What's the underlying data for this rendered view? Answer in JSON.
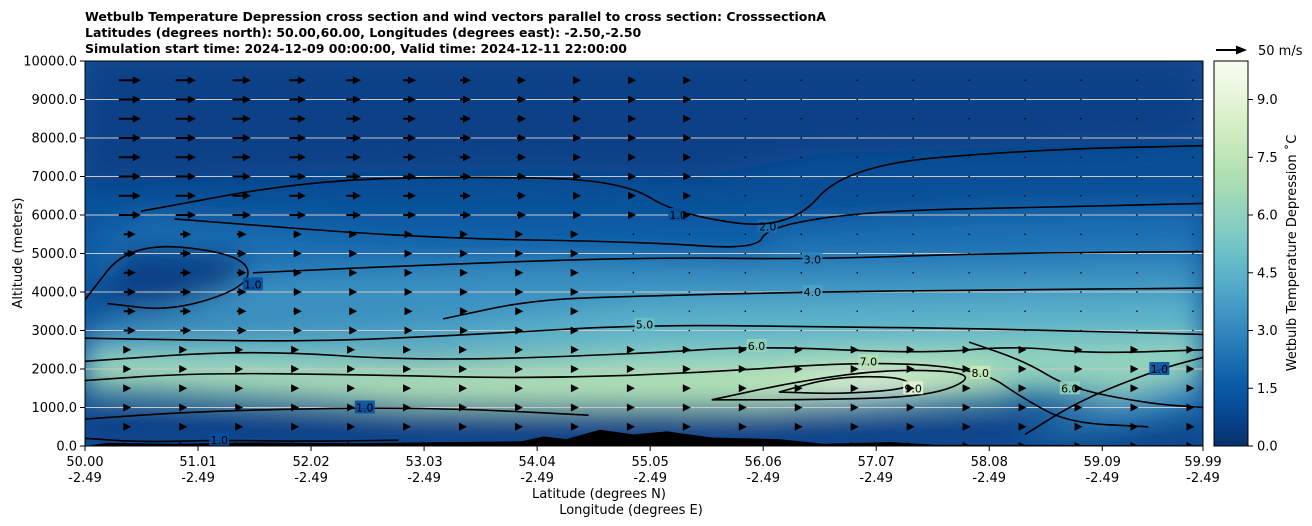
{
  "chart_data": {
    "type": "heatmap",
    "title_lines": [
      "Wetbulb Temperature Depression cross section and wind vectors parallel to cross section: CrosssectionA",
      "Latitudes (degrees north): 50.00,60.00, Longitudes (degrees east): -2.50,-2.50",
      "Simulation start time: 2024-12-09 00:00:00, Valid time: 2024-12-11 22:00:00"
    ],
    "xlabel": "Latitude (degrees N)",
    "xlabel2": "Longitude (degrees E)",
    "ylabel": "Altitude (meters)",
    "xlim": [
      50.0,
      59.99
    ],
    "ylim": [
      0,
      10000
    ],
    "x_ticks": [
      {
        "lat": "50.00",
        "lon": "-2.49",
        "v": 50.0
      },
      {
        "lat": "51.01",
        "lon": "-2.49",
        "v": 51.01
      },
      {
        "lat": "52.02",
        "lon": "-2.49",
        "v": 52.02
      },
      {
        "lat": "53.03",
        "lon": "-2.49",
        "v": 53.03
      },
      {
        "lat": "54.04",
        "lon": "-2.49",
        "v": 54.04
      },
      {
        "lat": "55.05",
        "lon": "-2.49",
        "v": 55.05
      },
      {
        "lat": "56.06",
        "lon": "-2.49",
        "v": 56.06
      },
      {
        "lat": "57.07",
        "lon": "-2.49",
        "v": 57.07
      },
      {
        "lat": "58.08",
        "lon": "-2.49",
        "v": 58.08
      },
      {
        "lat": "59.09",
        "lon": "-2.49",
        "v": 59.09
      },
      {
        "lat": "59.99",
        "lon": "-2.49",
        "v": 59.99
      }
    ],
    "y_ticks": [
      {
        "label": "0.0",
        "v": 0
      },
      {
        "label": "1000.0",
        "v": 1000
      },
      {
        "label": "2000.0",
        "v": 2000
      },
      {
        "label": "3000.0",
        "v": 3000
      },
      {
        "label": "4000.0",
        "v": 4000
      },
      {
        "label": "5000.0",
        "v": 5000
      },
      {
        "label": "6000.0",
        "v": 6000
      },
      {
        "label": "7000.0",
        "v": 7000
      },
      {
        "label": "8000.0",
        "v": 8000
      },
      {
        "label": "9000.0",
        "v": 9000
      },
      {
        "label": "10000.0",
        "v": 10000
      }
    ],
    "grid": "horizontal",
    "colorbar": {
      "label": "Wetbulb Temperature Depression ˚C",
      "range": [
        0,
        10
      ],
      "ticks": [
        {
          "label": "0.0",
          "v": 0
        },
        {
          "label": "1.5",
          "v": 1.5
        },
        {
          "label": "3.0",
          "v": 3.0
        },
        {
          "label": "4.5",
          "v": 4.5
        },
        {
          "label": "6.0",
          "v": 6.0
        },
        {
          "label": "7.5",
          "v": 7.5
        },
        {
          "label": "9.0",
          "v": 9.0
        }
      ],
      "colors": [
        "#08306b",
        "#083f86",
        "#084f9e",
        "#0b5ea8",
        "#1a6fb3",
        "#2a80ba",
        "#3b91c1",
        "#4aa3c8",
        "#5bb2c9",
        "#6cc0c7",
        "#80cbc4",
        "#93d3bd",
        "#a5dbb5",
        "#b6e2b4",
        "#c6e9bb",
        "#d5efc5",
        "#e2f4d3",
        "#eef9e4",
        "#f7fcf0"
      ]
    },
    "quiver_key": {
      "label": "50 m/s",
      "value": 50
    },
    "contours": [
      {
        "level": "1.0",
        "points": [
          [
            50.0,
            200
          ],
          [
            50.5,
            100
          ],
          [
            51.2,
            150
          ],
          [
            52.0,
            120
          ],
          [
            52.8,
            150
          ]
        ]
      },
      {
        "level": "1.0",
        "points": [
          [
            50.0,
            700
          ],
          [
            51.0,
            900
          ],
          [
            52.5,
            1000
          ],
          [
            53.5,
            950
          ],
          [
            54.5,
            800
          ]
        ]
      },
      {
        "level": "7.0",
        "points": [
          [
            50.0,
            1700
          ],
          [
            51.0,
            1900
          ],
          [
            52.5,
            1850
          ],
          [
            54.0,
            1750
          ],
          [
            55.5,
            1900
          ],
          [
            57.0,
            2200
          ],
          [
            58.0,
            2000
          ],
          [
            58.4,
            1200
          ],
          [
            58.8,
            600
          ],
          [
            59.5,
            500
          ]
        ]
      },
      {
        "level": "8.0",
        "points": [
          [
            55.6,
            1200
          ],
          [
            56.4,
            1700
          ],
          [
            57.2,
            2000
          ],
          [
            58.0,
            1900
          ],
          [
            57.6,
            1300
          ],
          [
            56.6,
            1200
          ],
          [
            55.6,
            1200
          ]
        ]
      },
      {
        "level": "9.0",
        "points": [
          [
            56.2,
            1400
          ],
          [
            56.7,
            1800
          ],
          [
            57.3,
            1800
          ],
          [
            57.4,
            1500
          ],
          [
            56.8,
            1350
          ],
          [
            56.2,
            1400
          ]
        ]
      },
      {
        "level": "6.0",
        "points": [
          [
            50.0,
            2200
          ],
          [
            51.5,
            2500
          ],
          [
            53.0,
            2200
          ],
          [
            55.0,
            2400
          ],
          [
            56.0,
            2600
          ],
          [
            57.5,
            2400
          ],
          [
            58.3,
            2600
          ],
          [
            59.0,
            2400
          ],
          [
            59.99,
            2500
          ]
        ]
      },
      {
        "level": "5.0",
        "points": [
          [
            50.0,
            2800
          ],
          [
            52.0,
            2700
          ],
          [
            53.5,
            2900
          ],
          [
            55.0,
            3150
          ],
          [
            56.5,
            3100
          ],
          [
            58.0,
            3050
          ],
          [
            59.99,
            2900
          ]
        ]
      },
      {
        "level": "4.0",
        "points": [
          [
            53.2,
            3300
          ],
          [
            54.0,
            3800
          ],
          [
            55.0,
            3900
          ],
          [
            56.5,
            4000
          ],
          [
            58.0,
            4050
          ],
          [
            59.99,
            4100
          ]
        ]
      },
      {
        "level": "3.0",
        "points": [
          [
            51.5,
            4500
          ],
          [
            53.0,
            4700
          ],
          [
            55.0,
            4900
          ],
          [
            56.5,
            4850
          ],
          [
            58.0,
            5000
          ],
          [
            59.99,
            5050
          ]
        ]
      },
      {
        "level": "2.0",
        "points": [
          [
            50.8,
            5900
          ],
          [
            53.0,
            5400
          ],
          [
            55.0,
            5300
          ],
          [
            56.0,
            5100
          ],
          [
            56.1,
            5700
          ],
          [
            57.0,
            6100
          ],
          [
            58.5,
            6200
          ],
          [
            59.99,
            6300
          ]
        ]
      },
      {
        "level": "1.0",
        "points": [
          [
            50.0,
            3800
          ],
          [
            50.4,
            5300
          ],
          [
            51.4,
            5000
          ],
          [
            51.5,
            4200
          ],
          [
            50.8,
            3500
          ],
          [
            50.2,
            3700
          ]
        ]
      },
      {
        "level": "1.0",
        "points": [
          [
            50.5,
            6100
          ],
          [
            52.0,
            6900
          ],
          [
            53.5,
            7000
          ],
          [
            54.8,
            6900
          ],
          [
            55.3,
            6000
          ],
          [
            56.3,
            5600
          ],
          [
            56.8,
            7300
          ],
          [
            58.5,
            7700
          ],
          [
            59.99,
            7800
          ]
        ]
      },
      {
        "level": "6.0",
        "points": [
          [
            57.9,
            2700
          ],
          [
            58.4,
            2200
          ],
          [
            58.8,
            1500
          ],
          [
            59.5,
            1100
          ],
          [
            59.99,
            1000
          ]
        ]
      },
      {
        "level": "1.0",
        "points": [
          [
            58.4,
            300
          ],
          [
            58.9,
            1200
          ],
          [
            59.6,
            2000
          ],
          [
            59.99,
            2300
          ]
        ]
      }
    ]
  }
}
